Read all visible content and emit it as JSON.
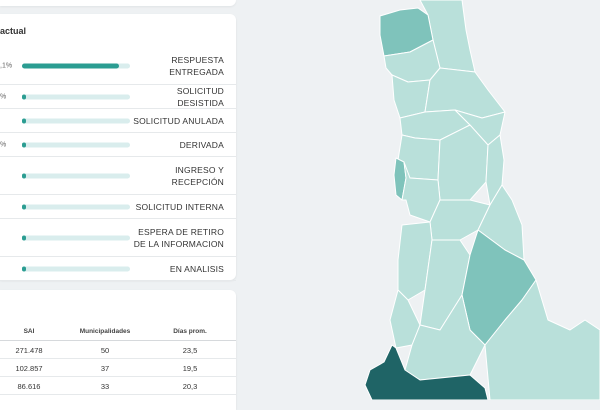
{
  "status_panel": {
    "title": "actual",
    "items": [
      {
        "label": "RESPUESTA ENTREGADA",
        "pct": ",1%",
        "fraction": 0.9,
        "lines": 2
      },
      {
        "label": "SOLICITUD DESISTIDA",
        "pct": "%",
        "fraction": 0.03,
        "lines": 1
      },
      {
        "label": "SOLICITUD ANULADA",
        "pct": "",
        "fraction": 0.03,
        "lines": 1
      },
      {
        "label": "DERIVADA",
        "pct": "%",
        "fraction": 0.03,
        "lines": 1
      },
      {
        "label": "INGRESO Y RECEPCIÓN",
        "pct": "",
        "fraction": 0.03,
        "lines": 2
      },
      {
        "label": "SOLICITUD INTERNA",
        "pct": "",
        "fraction": 0.03,
        "lines": 1
      },
      {
        "label": "ESPERA DE RETIRO DE LA INFORMACION",
        "pct": "",
        "fraction": 0.03,
        "lines": 2
      },
      {
        "label": "EN ANALISIS",
        "pct": "",
        "fraction": 0.03,
        "lines": 1
      }
    ]
  },
  "table": {
    "headers": {
      "sai": "SAI",
      "municipalidades": "Municipalidades",
      "dias": "Días prom."
    },
    "rows": [
      {
        "sai": "271.478",
        "municipalidades": "50",
        "dias": "23,5"
      },
      {
        "sai": "102.857",
        "municipalidades": "37",
        "dias": "19,5"
      },
      {
        "sai": "86.616",
        "municipalidades": "33",
        "dias": "20,3"
      }
    ]
  },
  "colors": {
    "accent": "#2b9d92",
    "track": "#d9eded",
    "map_light": "#b9e0da",
    "map_mid": "#7fc3bb",
    "map_dark": "#1f6466",
    "map_border": "#ffffff"
  }
}
